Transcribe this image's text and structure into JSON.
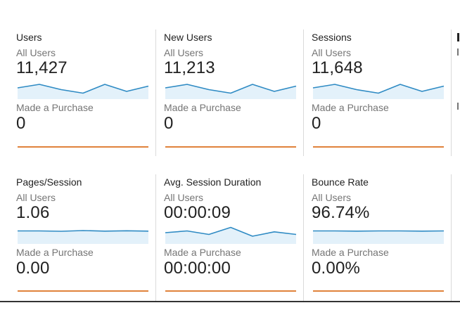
{
  "colors": {
    "all_users_line": "#2f8bc4",
    "all_users_fill": "#e3f1fa",
    "purchase_line": "#e0823b"
  },
  "metrics": [
    {
      "title": "Users",
      "all_users_label": "All Users",
      "all_users_value": "11,427",
      "all_users_trend": [
        4,
        6,
        3,
        1,
        6,
        2,
        5
      ],
      "purchase_label": "Made a Purchase",
      "purchase_value": "0"
    },
    {
      "title": "New Users",
      "all_users_label": "All Users",
      "all_users_value": "11,213",
      "all_users_trend": [
        4,
        6,
        3,
        1,
        6,
        2,
        5
      ],
      "purchase_label": "Made a Purchase",
      "purchase_value": "0"
    },
    {
      "title": "Sessions",
      "all_users_label": "All Users",
      "all_users_value": "11,648",
      "all_users_trend": [
        4,
        6,
        3,
        1,
        6,
        2,
        5
      ],
      "purchase_label": "Made a Purchase",
      "purchase_value": "0"
    },
    {
      "title": "Pages/Session",
      "all_users_label": "All Users",
      "all_users_value": "1.06",
      "all_users_trend": [
        5,
        5,
        4.8,
        5.2,
        4.9,
        5.1,
        4.9
      ],
      "purchase_label": "Made a Purchase",
      "purchase_value": "0.00"
    },
    {
      "title": "Avg. Session Duration",
      "all_users_label": "All Users",
      "all_users_value": "00:00:09",
      "all_users_trend": [
        4,
        5,
        3,
        7,
        2,
        4.5,
        3
      ],
      "purchase_label": "Made a Purchase",
      "purchase_value": "00:00:00"
    },
    {
      "title": "Bounce Rate",
      "all_users_label": "All Users",
      "all_users_value": "96.74%",
      "all_users_trend": [
        5,
        5,
        4.9,
        5,
        5,
        4.9,
        5
      ],
      "purchase_label": "Made a Purchase",
      "purchase_value": "0.00%"
    }
  ]
}
